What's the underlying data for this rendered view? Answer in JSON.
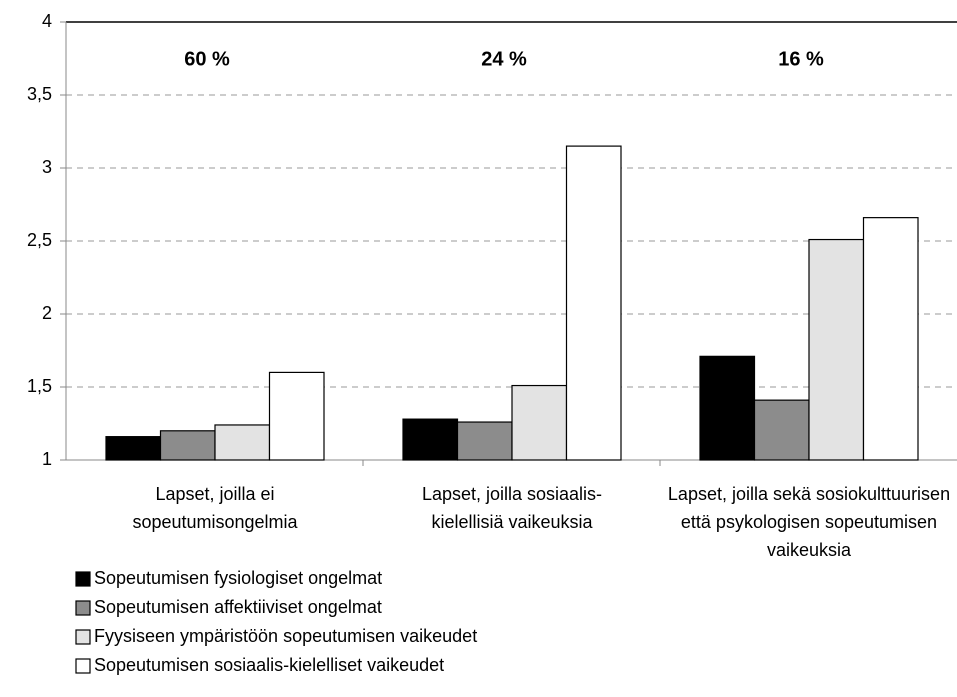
{
  "chart_data": {
    "type": "bar",
    "categories": [
      "Lapset, joilla ei sopeutumisongelmia",
      "Lapset, joilla sosiaalis-kielellisiä vaikeuksia",
      "Lapset, joilla sekä sosiokulttuurisen että psykologisen sopeutumisen vaikeuksia"
    ],
    "annotations": [
      "60 %",
      "24 %",
      "16 %"
    ],
    "series": [
      {
        "name": "Sopeutumisen fysiologiset ongelmat",
        "color": "#000000",
        "values": [
          1.16,
          1.28,
          1.71
        ]
      },
      {
        "name": "Sopeutumisen affektiiviset ongelmat",
        "color": "#8c8c8c",
        "values": [
          1.2,
          1.26,
          1.41
        ]
      },
      {
        "name": "Fyysiseen ympäristöön sopeutumisen vaikeudet",
        "color": "#e3e3e3",
        "values": [
          1.24,
          1.51,
          2.51
        ]
      },
      {
        "name": "Sopeutumisen sosiaalis-kielelliset vaikeudet",
        "color": "#ffffff",
        "values": [
          1.6,
          3.15,
          2.66
        ]
      }
    ],
    "ylim": [
      1,
      4
    ],
    "yticks": [
      1,
      {
        "value": 1.5,
        "label": "1,5"
      },
      2,
      {
        "value": 2.5,
        "label": "2,5"
      },
      3,
      {
        "value": 3.5,
        "label": "3,5"
      },
      4
    ],
    "grid": true,
    "legend": "bottom-left"
  }
}
